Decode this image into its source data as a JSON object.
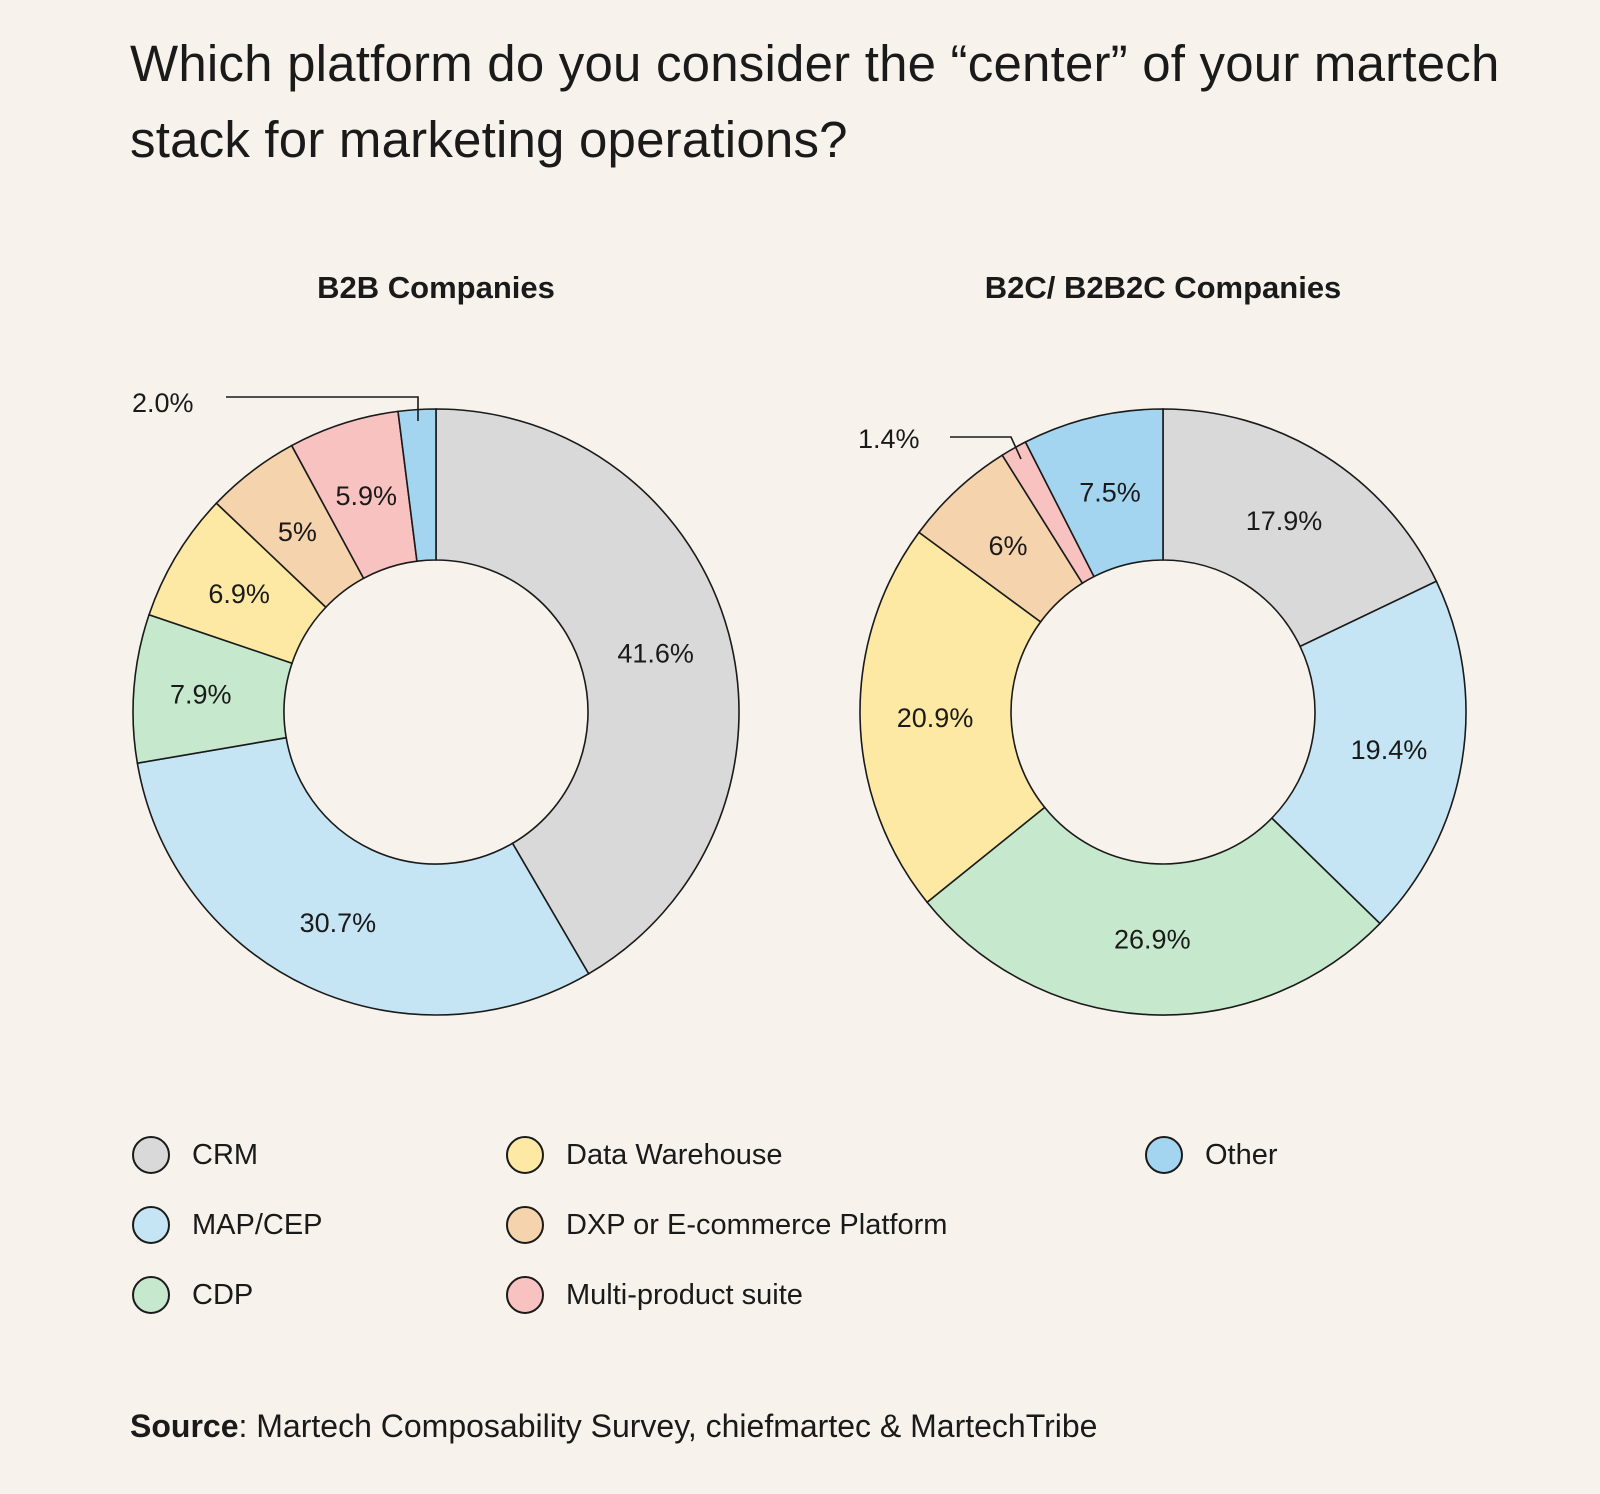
{
  "title": "Which platform do you consider the “center” of your martech stack for marketing operations?",
  "categories": [
    {
      "name": "CRM",
      "color": "#d9d9d9"
    },
    {
      "name": "MAP/CEP",
      "color": "#c5e5f4"
    },
    {
      "name": "CDP",
      "color": "#c6e8cd"
    },
    {
      "name": "Data Warehouse",
      "color": "#fde9a3"
    },
    {
      "name": "DXP or E-commerce Platform",
      "color": "#f5d3ac"
    },
    {
      "name": "Multi-product suite",
      "color": "#f7c2c0"
    },
    {
      "name": "Other",
      "color": "#a3d5f0"
    }
  ],
  "chart_data": [
    {
      "type": "donut",
      "title": "B2B Companies",
      "categories": [
        "CRM",
        "MAP/CEP",
        "CDP",
        "Data Warehouse",
        "DXP or E-commerce Platform",
        "Multi-product suite",
        "Other"
      ],
      "values": [
        41.6,
        30.7,
        7.9,
        6.9,
        5.0,
        5.9,
        2.0
      ],
      "labels": [
        "41.6%",
        "30.7%",
        "7.9%",
        "6.9%",
        "5%",
        "5.9%",
        "2.0%"
      ],
      "callout_labels": [
        "Other"
      ]
    },
    {
      "type": "donut",
      "title": "B2C/ B2B2C Companies",
      "categories": [
        "CRM",
        "MAP/CEP",
        "CDP",
        "Data Warehouse",
        "DXP or E-commerce Platform",
        "Multi-product suite",
        "Other"
      ],
      "values": [
        17.9,
        19.4,
        26.9,
        20.9,
        6.0,
        1.4,
        7.5
      ],
      "labels": [
        "17.9%",
        "19.4%",
        "26.9%",
        "20.9%",
        "6%",
        "1.4%",
        "7.5%"
      ],
      "callout_labels": [
        "Multi-product suite"
      ]
    }
  ],
  "source": {
    "label": "Source",
    "text": ": Martech Composability Survey, chiefmartec & MartechTribe"
  }
}
